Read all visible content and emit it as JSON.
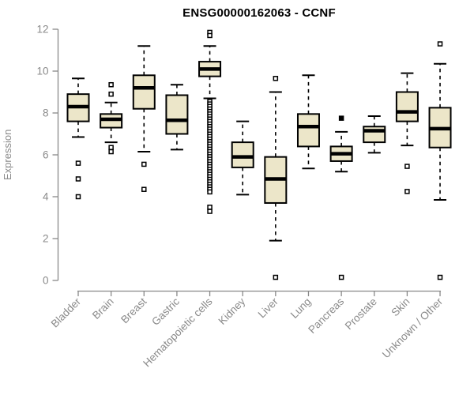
{
  "chart_data": {
    "type": "boxplot",
    "title": "ENSG00000162063 - CCNF",
    "xlabel": "",
    "ylabel": "Expression",
    "ylim": [
      0,
      12
    ],
    "yticks": [
      0,
      2,
      4,
      6,
      8,
      10,
      12
    ],
    "grid": false,
    "legend": "none",
    "colors": {
      "box_fill": "#ece6c9",
      "box_stroke": "#000000",
      "median": "#000000",
      "axis": "#898989",
      "tick_label": "#8a8a8a",
      "title": "#000000",
      "background": "#ffffff"
    },
    "categories": [
      "Bladder",
      "Brain",
      "Breast",
      "Gastric",
      "Hematopoietic cells",
      "Kidney",
      "Liver",
      "Lung",
      "Pancreas",
      "Prostate",
      "Skin",
      "Unknown / Other"
    ],
    "series": [
      {
        "category": "Bladder",
        "whisker_low": 6.85,
        "q1": 7.6,
        "median": 8.3,
        "q3": 8.9,
        "whisker_high": 9.65,
        "outliers": [
          5.6,
          4.85,
          4.0
        ],
        "filled_outliers": []
      },
      {
        "category": "Brain",
        "whisker_low": 6.6,
        "q1": 7.3,
        "median": 7.7,
        "q3": 7.95,
        "whisker_high": 8.5,
        "outliers": [
          9.35,
          8.9,
          6.35,
          6.15
        ],
        "filled_outliers": []
      },
      {
        "category": "Breast",
        "whisker_low": 6.15,
        "q1": 8.2,
        "median": 9.2,
        "q3": 9.8,
        "whisker_high": 11.2,
        "outliers": [
          5.55,
          4.35
        ],
        "filled_outliers": []
      },
      {
        "category": "Gastric",
        "whisker_low": 6.25,
        "q1": 7.0,
        "median": 7.65,
        "q3": 8.85,
        "whisker_high": 9.35,
        "outliers": [],
        "filled_outliers": []
      },
      {
        "category": "Hematopoietic cells",
        "whisker_low": 8.7,
        "q1": 9.75,
        "median": 10.1,
        "q3": 10.45,
        "whisker_high": 11.2,
        "outliers": [
          11.85,
          11.7,
          8.55,
          8.43,
          8.31,
          8.19,
          8.07,
          7.95,
          7.83,
          7.71,
          7.59,
          7.47,
          7.35,
          7.23,
          7.11,
          6.99,
          6.87,
          6.75,
          6.63,
          6.51,
          6.39,
          6.27,
          6.15,
          6.03,
          5.91,
          5.79,
          5.67,
          5.55,
          5.43,
          5.31,
          5.19,
          5.07,
          4.95,
          4.83,
          4.71,
          4.59,
          4.47,
          4.35,
          4.23,
          3.5,
          3.3
        ],
        "filled_outliers": []
      },
      {
        "category": "Kidney",
        "whisker_low": 4.1,
        "q1": 5.4,
        "median": 5.9,
        "q3": 6.6,
        "whisker_high": 7.6,
        "outliers": [],
        "filled_outliers": []
      },
      {
        "category": "Liver",
        "whisker_low": 1.9,
        "q1": 3.7,
        "median": 4.85,
        "q3": 5.9,
        "whisker_high": 9.0,
        "outliers": [
          9.65,
          0.15
        ],
        "filled_outliers": []
      },
      {
        "category": "Lung",
        "whisker_low": 5.35,
        "q1": 6.4,
        "median": 7.35,
        "q3": 7.95,
        "whisker_high": 9.8,
        "outliers": [],
        "filled_outliers": []
      },
      {
        "category": "Pancreas",
        "whisker_low": 5.2,
        "q1": 5.7,
        "median": 6.05,
        "q3": 6.4,
        "whisker_high": 7.1,
        "outliers": [
          7.75,
          0.15
        ],
        "filled_outliers": [
          7.75
        ]
      },
      {
        "category": "Prostate",
        "whisker_low": 6.1,
        "q1": 6.6,
        "median": 7.15,
        "q3": 7.35,
        "whisker_high": 7.85,
        "outliers": [],
        "filled_outliers": []
      },
      {
        "category": "Skin",
        "whisker_low": 6.45,
        "q1": 7.6,
        "median": 8.05,
        "q3": 9.0,
        "whisker_high": 9.9,
        "outliers": [
          5.45,
          4.25
        ],
        "filled_outliers": []
      },
      {
        "category": "Unknown / Other",
        "whisker_low": 3.85,
        "q1": 6.35,
        "median": 7.25,
        "q3": 8.25,
        "whisker_high": 10.35,
        "outliers": [
          11.3,
          0.15
        ],
        "filled_outliers": []
      }
    ]
  }
}
